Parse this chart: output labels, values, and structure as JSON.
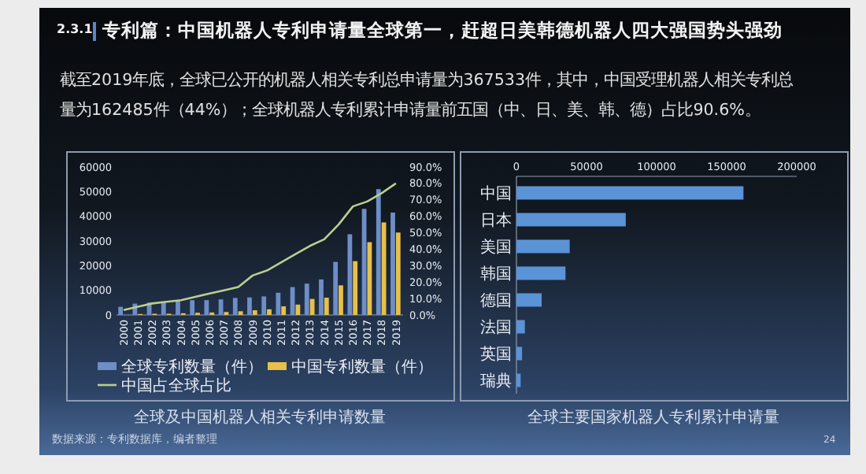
{
  "chart_data": [
    {
      "type": "bar",
      "title": "全球及中国机器人相关专利申请数量",
      "annotations": [
        "2.3.1",
        "专利篇：中国机器人专利申请量全球第一，赶超日美韩德机器人四大强国势头强劲",
        "截至2019年底，全球已公开的机器人相关专利总申请量为367533件，其中，中国受理机器人相关专利总量为162485件（44%）；全球机器人专利累计申请量前五国（中、日、美、韩、德）占比90.6%。",
        "数据来源：专利数据库，编者整理",
        "24"
      ],
      "categories": [
        "2000",
        "2001",
        "2002",
        "2003",
        "2004",
        "2005",
        "2006",
        "2007",
        "2008",
        "2009",
        "2010",
        "2011",
        "2012",
        "2013",
        "2014",
        "2015",
        "2016",
        "2017",
        "2018",
        "2019"
      ],
      "series": [
        {
          "name": "全球专利数量（件）",
          "color": "#6d8ec6",
          "values": [
            3300,
            4600,
            5000,
            5200,
            5800,
            6000,
            6000,
            6300,
            6900,
            7100,
            7500,
            9000,
            11300,
            12700,
            14400,
            21500,
            32700,
            43000,
            51000,
            41500
          ]
        },
        {
          "name": "中国专利数量（件）",
          "color": "#e6c04a",
          "values": [
            null,
            400,
            500,
            500,
            700,
            900,
            1000,
            1200,
            1500,
            1900,
            2300,
            3500,
            4200,
            6500,
            7000,
            12000,
            21800,
            29500,
            37500,
            33400
          ]
        },
        {
          "name": "中国占全球占比",
          "type": "line",
          "axis": "y2",
          "color": "#b9cf8f",
          "values": [
            3,
            5,
            7,
            8,
            9,
            11,
            13,
            15,
            17,
            24,
            27,
            32,
            37,
            42,
            46,
            55,
            66,
            69,
            74,
            80
          ]
        }
      ],
      "ylim": [
        0,
        60000
      ],
      "yticks": [
        0,
        10000,
        20000,
        30000,
        40000,
        50000,
        60000
      ],
      "y2lim": [
        0,
        90
      ],
      "y2ticks": [
        {
          "value": 0,
          "label": "0.0%"
        },
        {
          "value": 10,
          "label": "10.0%"
        },
        {
          "value": 20,
          "label": "20.0%"
        },
        {
          "value": 30,
          "label": "30.0%"
        },
        {
          "value": 40,
          "label": "40.0%"
        },
        {
          "value": 50,
          "label": "50.0%"
        },
        {
          "value": 60,
          "label": "60.0%"
        },
        {
          "value": 70,
          "label": "70.0%"
        },
        {
          "value": 80,
          "label": "80.0%"
        },
        {
          "value": 90,
          "label": "90.0%"
        }
      ],
      "legend": "bottom"
    },
    {
      "type": "bar",
      "orientation": "horizontal",
      "title": "全球主要国家机器人专利累计申请量",
      "categories": [
        "中国",
        "日本",
        "美国",
        "韩国",
        "德国",
        "法国",
        "英国",
        "瑞典"
      ],
      "values": [
        162000,
        78000,
        38000,
        35000,
        18000,
        6000,
        4000,
        3000
      ],
      "color": "#5a93d6",
      "xlim": [
        0,
        200000
      ],
      "xticks": [
        0,
        50000,
        100000,
        150000,
        200000
      ]
    }
  ]
}
